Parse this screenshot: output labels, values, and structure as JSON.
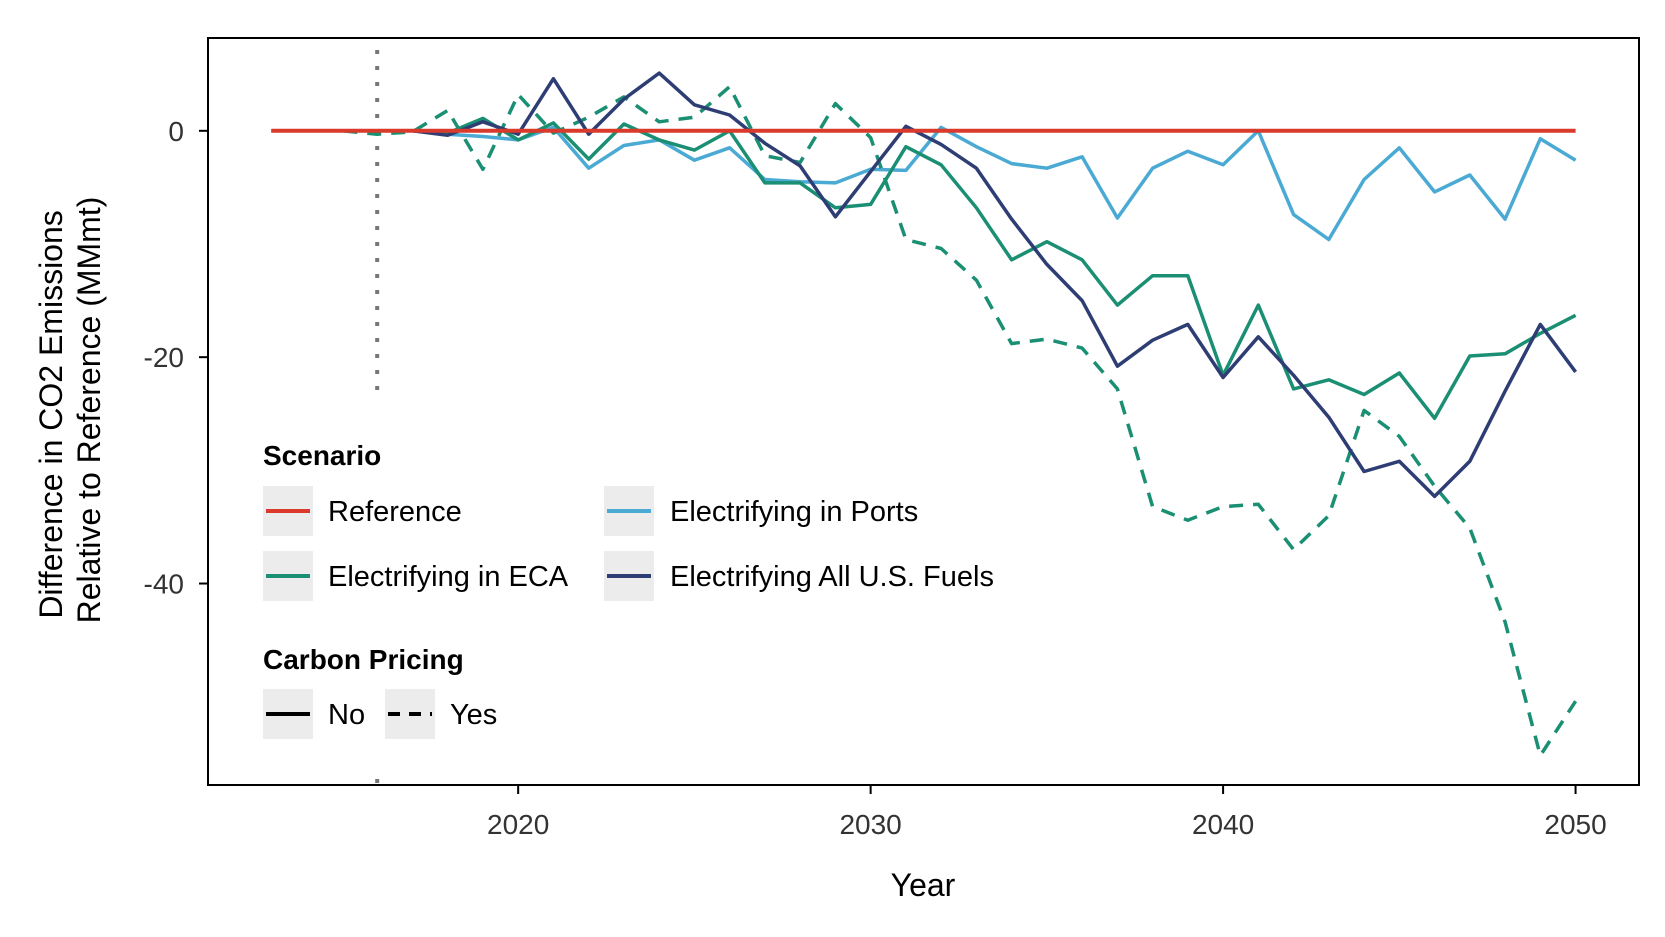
{
  "chart_data": {
    "type": "line",
    "xlabel": "Year",
    "ylabel_lines": [
      "Difference in CO2 Emissions",
      "Relative to Reference (MMmt)"
    ],
    "xlim": [
      2011.2,
      2051.8
    ],
    "ylim": [
      -57.8,
      8.2
    ],
    "x_ticks": [
      2020,
      2030,
      2040,
      2050
    ],
    "x_tick_labels": [
      "2020",
      "2030",
      "2040",
      "2050"
    ],
    "y_ticks": [
      0,
      -20,
      -40
    ],
    "y_tick_labels": [
      "0",
      "-20",
      "-40"
    ],
    "reference_vline": 2016,
    "grid": false,
    "legend_position": "bottom-left inside",
    "legend": {
      "scenario_title": "Scenario",
      "pricing_title": "Carbon Pricing",
      "scenarios": [
        {
          "name": "Reference",
          "color": "#d93a2b"
        },
        {
          "name": "Electrifying in Ports",
          "color": "#4aaad3"
        },
        {
          "name": "Electrifying in ECA",
          "color": "#1b8f73"
        },
        {
          "name": "Electrifying All U.S. Fuels",
          "color": "#2e3e74"
        }
      ],
      "pricing": [
        {
          "name": "No",
          "dash": "solid"
        },
        {
          "name": "Yes",
          "dash": "dashed"
        }
      ]
    },
    "series": [
      {
        "name": "Reference",
        "pricing": "No",
        "color": "#d93a2b",
        "x": [
          2013,
          2014,
          2015,
          2016,
          2017,
          2018,
          2019,
          2020,
          2021,
          2022,
          2023,
          2024,
          2025,
          2026,
          2027,
          2028,
          2029,
          2030,
          2031,
          2032,
          2033,
          2034,
          2035,
          2036,
          2037,
          2038,
          2039,
          2040,
          2041,
          2042,
          2043,
          2044,
          2045,
          2046,
          2047,
          2048,
          2049,
          2050
        ],
        "y": [
          0,
          0,
          0,
          0,
          0,
          0,
          0,
          0,
          0,
          0,
          0,
          0,
          0,
          0,
          0,
          0,
          0,
          0,
          0,
          0,
          0,
          0,
          0,
          0,
          0,
          0,
          0,
          0,
          0,
          0,
          0,
          0,
          0,
          0,
          0,
          0,
          0,
          0
        ]
      },
      {
        "name": "Electrifying in Ports",
        "pricing": "No",
        "color": "#4aaad3",
        "x": [
          2013,
          2014,
          2015,
          2016,
          2017,
          2018,
          2019,
          2020,
          2021,
          2022,
          2023,
          2024,
          2025,
          2026,
          2027,
          2028,
          2029,
          2030,
          2031,
          2032,
          2033,
          2034,
          2035,
          2036,
          2037,
          2038,
          2039,
          2040,
          2041,
          2042,
          2043,
          2044,
          2045,
          2046,
          2047,
          2048,
          2049,
          2050
        ],
        "y": [
          0,
          0,
          0,
          0,
          0,
          -0.3,
          -0.5,
          -0.8,
          0.3,
          -3.3,
          -1.3,
          -0.8,
          -2.6,
          -1.5,
          -4.3,
          -4.5,
          -4.6,
          -3.4,
          -3.5,
          0.3,
          -1.4,
          -2.9,
          -3.3,
          -2.3,
          -7.7,
          -3.3,
          -1.8,
          -3.0,
          0,
          -7.4,
          -9.6,
          -4.3,
          -1.5,
          -5.4,
          -3.9,
          -7.8,
          -0.7,
          -2.6
        ]
      },
      {
        "name": "Electrifying in ECA",
        "pricing": "No",
        "color": "#1b8f73",
        "x": [
          2013,
          2014,
          2015,
          2016,
          2017,
          2018,
          2019,
          2020,
          2021,
          2022,
          2023,
          2024,
          2025,
          2026,
          2027,
          2028,
          2029,
          2030,
          2031,
          2032,
          2033,
          2034,
          2035,
          2036,
          2037,
          2038,
          2039,
          2040,
          2041,
          2042,
          2043,
          2044,
          2045,
          2046,
          2047,
          2048,
          2049,
          2050
        ],
        "y": [
          0,
          0,
          0,
          0,
          0,
          -0.2,
          1.1,
          -0.8,
          0.7,
          -2.5,
          0.6,
          -0.8,
          -1.7,
          0,
          -4.6,
          -4.6,
          -6.8,
          -6.5,
          -1.4,
          -3.0,
          -6.8,
          -11.4,
          -9.8,
          -11.4,
          -15.4,
          -12.8,
          -12.8,
          -21.6,
          -15.4,
          -22.8,
          -22.0,
          -23.3,
          -21.4,
          -25.4,
          -19.9,
          -19.7,
          -17.9,
          -16.3
        ]
      },
      {
        "name": "Electrifying in ECA",
        "pricing": "Yes",
        "color": "#1b8f73",
        "x": [
          2013,
          2014,
          2015,
          2016,
          2017,
          2018,
          2019,
          2020,
          2021,
          2022,
          2023,
          2024,
          2025,
          2026,
          2027,
          2028,
          2029,
          2030,
          2031,
          2032,
          2033,
          2034,
          2035,
          2036,
          2037,
          2038,
          2039,
          2040,
          2041,
          2042,
          2043,
          2044,
          2045,
          2046,
          2047,
          2048,
          2049,
          2050
        ],
        "y": [
          0,
          0,
          0,
          -0.3,
          -0.1,
          1.8,
          -3.4,
          3.2,
          -0.2,
          1.2,
          3.0,
          0.8,
          1.2,
          3.9,
          -2.2,
          -2.8,
          2.4,
          -0.6,
          -9.6,
          -10.4,
          -13.2,
          -18.8,
          -18.4,
          -19.2,
          -22.8,
          -33.2,
          -34.4,
          -33.2,
          -33.0,
          -37.0,
          -34.0,
          -24.7,
          -27.0,
          -31.4,
          -35.1,
          -43.4,
          -55.2,
          -50.4
        ]
      },
      {
        "name": "Electrifying All U.S. Fuels",
        "pricing": "No",
        "color": "#2e3e74",
        "x": [
          2013,
          2014,
          2015,
          2016,
          2017,
          2018,
          2019,
          2020,
          2021,
          2022,
          2023,
          2024,
          2025,
          2026,
          2027,
          2028,
          2029,
          2030,
          2031,
          2032,
          2033,
          2034,
          2035,
          2036,
          2037,
          2038,
          2039,
          2040,
          2041,
          2042,
          2043,
          2044,
          2045,
          2046,
          2047,
          2048,
          2049,
          2050
        ],
        "y": [
          0,
          0,
          0,
          0,
          0,
          -0.4,
          0.8,
          -0.3,
          4.6,
          -0.3,
          2.8,
          5.1,
          2.3,
          1.4,
          -1.1,
          -3.1,
          -7.6,
          -3.6,
          0.4,
          -1.2,
          -3.3,
          -7.8,
          -11.8,
          -15.0,
          -20.8,
          -18.5,
          -17.1,
          -21.8,
          -18.2,
          -21.6,
          -25.3,
          -30.1,
          -29.2,
          -32.3,
          -29.2,
          -23.0,
          -17.1,
          -21.3
        ]
      }
    ]
  }
}
